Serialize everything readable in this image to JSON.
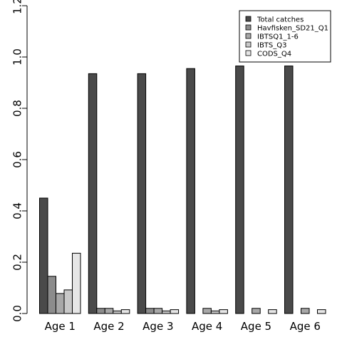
{
  "chart_data": {
    "type": "bar",
    "categories": [
      "Age 1",
      "Age 2",
      "Age 3",
      "Age 4",
      "Age 5",
      "Age 6"
    ],
    "series": [
      {
        "name": "Total catches",
        "color": "#4a4a4a",
        "values": [
          0.45,
          0.935,
          0.935,
          0.955,
          0.965,
          0.965
        ]
      },
      {
        "name": "Havfisken_SD21_Q1",
        "color": "#8c8c8c",
        "values": [
          0.145,
          0.02,
          0.02,
          0.0,
          0.0,
          0.0
        ]
      },
      {
        "name": "IBTSQ1_1-6",
        "color": "#a8a8a8",
        "values": [
          0.078,
          0.02,
          0.02,
          0.02,
          0.02,
          0.02
        ]
      },
      {
        "name": "IBTS_Q3",
        "color": "#c8c8c8",
        "values": [
          0.092,
          0.01,
          0.01,
          0.01,
          0.0,
          0.0
        ]
      },
      {
        "name": "CODS_Q4",
        "color": "#e6e6e6",
        "values": [
          0.235,
          0.015,
          0.015,
          0.015,
          0.015,
          0.015
        ]
      }
    ],
    "yticks": [
      "0.0",
      "0.2",
      "0.4",
      "0.6",
      "0.8",
      "1.0",
      "1.2"
    ],
    "ylim": [
      0,
      1.2
    ],
    "title": "",
    "xlabel": "",
    "ylabel": "",
    "grid": false,
    "legend_position": "top-right"
  }
}
